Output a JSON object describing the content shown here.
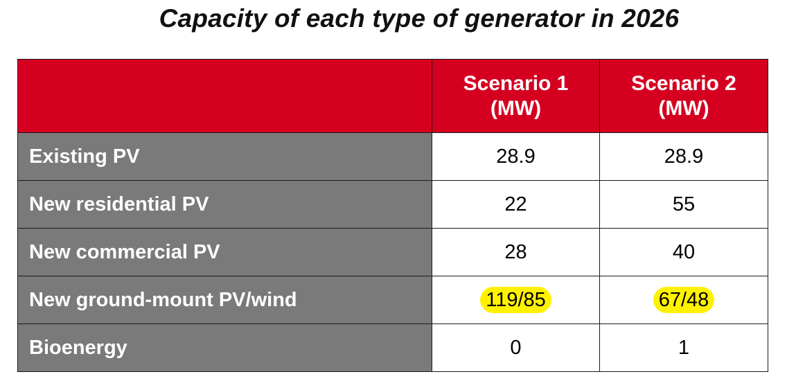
{
  "chart_data": {
    "type": "table",
    "title": "Capacity of each type of generator in 2026",
    "columns": [
      {
        "line1": "Scenario 1",
        "line2": "(MW)"
      },
      {
        "line1": "Scenario 2",
        "line2": "(MW)"
      }
    ],
    "rows": [
      {
        "label": "Existing PV",
        "values": [
          "28.9",
          "28.9"
        ],
        "highlight": false
      },
      {
        "label": "New residential PV",
        "values": [
          "22",
          "55"
        ],
        "highlight": false
      },
      {
        "label": "New commercial PV",
        "values": [
          "28",
          "40"
        ],
        "highlight": false
      },
      {
        "label": "New ground-mount PV/wind",
        "values": [
          "119/85",
          "67/48"
        ],
        "highlight": true
      },
      {
        "label": "Bioenergy",
        "values": [
          "0",
          "1"
        ],
        "highlight": false
      }
    ]
  },
  "colors": {
    "header_bg": "#d50020",
    "label_bg": "#7a7a7a",
    "highlight": "#fff200"
  }
}
